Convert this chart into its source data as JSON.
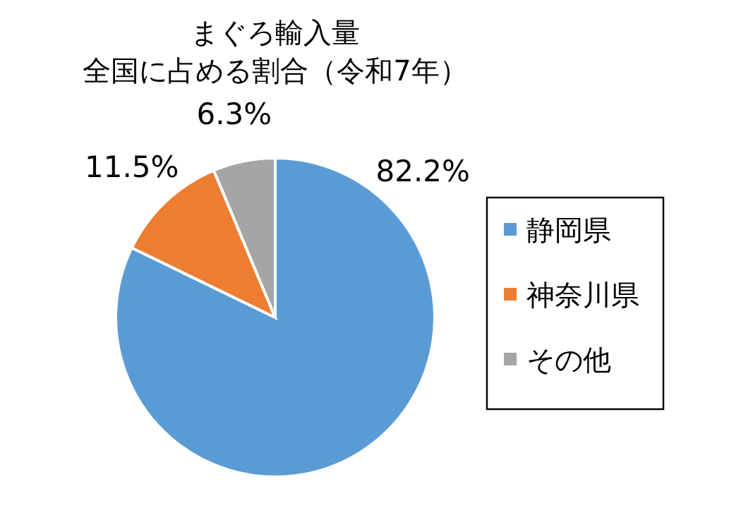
{
  "chart_data": {
    "type": "pie",
    "title": "まぐろ輸入量",
    "subtitle": "全国に占める割合（令和7年）",
    "categories": [
      "静岡県",
      "神奈川県",
      "その他"
    ],
    "values": [
      82.2,
      11.5,
      6.3
    ],
    "colors": [
      "#5b9bd5",
      "#ed7d31",
      "#a5a5a5"
    ],
    "value_labels": [
      "82.2%",
      "11.5%",
      "6.3%"
    ],
    "legend": "right"
  }
}
